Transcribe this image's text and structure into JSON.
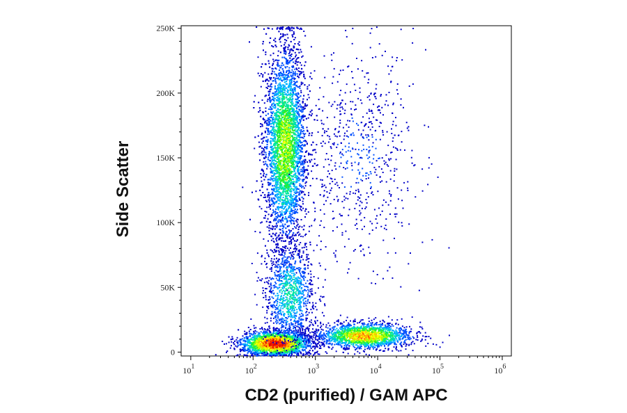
{
  "chart_data": {
    "type": "scatter",
    "title": "",
    "xlabel": "CD2 (purified) / GAM APC",
    "ylabel": "Side Scatter",
    "x_scale": "log",
    "xlim": [
      7,
      1400000
    ],
    "ylim": [
      -3000,
      252000
    ],
    "x_ticks": [
      {
        "value": 10,
        "base": "10",
        "exp": "1"
      },
      {
        "value": 100,
        "base": "10",
        "exp": "2"
      },
      {
        "value": 1000,
        "base": "10",
        "exp": "3"
      },
      {
        "value": 10000,
        "base": "10",
        "exp": "4"
      },
      {
        "value": 100000,
        "base": "10",
        "exp": "5"
      },
      {
        "value": 1000000,
        "base": "10",
        "exp": "6"
      }
    ],
    "y_ticks": [
      {
        "value": 0,
        "label": "0"
      },
      {
        "value": 50000,
        "label": "50K"
      },
      {
        "value": 100000,
        "label": "100K"
      },
      {
        "value": 150000,
        "label": "150K"
      },
      {
        "value": 200000,
        "label": "200K"
      },
      {
        "value": 250000,
        "label": "250K"
      }
    ],
    "grid": false,
    "legend": "none",
    "color_map": [
      "#0000c8",
      "#0050ff",
      "#00b4ff",
      "#00e6a0",
      "#28f028",
      "#b4ff00",
      "#ffff00",
      "#ffb400",
      "#ff5000",
      "#e60000"
    ],
    "populations": [
      {
        "name": "",
        "x_median": 320,
        "x_log_sd": 0.17,
        "y_median": 160000,
        "y_sd": 38000,
        "count": 5200,
        "peak_density": 0.55
      },
      {
        "name": "",
        "x_median": 220,
        "x_log_sd": 0.28,
        "y_median": 7000,
        "y_sd": 5000,
        "count": 2600,
        "peak_density": 1.0
      },
      {
        "name": "",
        "x_median": 6000,
        "x_log_sd": 0.38,
        "y_median": 13000,
        "y_sd": 5000,
        "count": 1800,
        "peak_density": 0.75
      },
      {
        "name": "",
        "x_median": 380,
        "x_log_sd": 0.2,
        "y_median": 45000,
        "y_sd": 20000,
        "count": 1100,
        "peak_density": 0.35
      },
      {
        "name": "",
        "x_median": 5000,
        "x_log_sd": 0.45,
        "y_median": 150000,
        "y_sd": 40000,
        "count": 650,
        "peak_density": 0.12
      }
    ]
  }
}
